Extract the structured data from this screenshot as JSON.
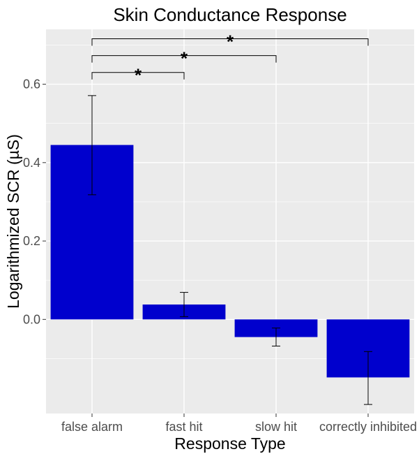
{
  "chart_data": {
    "type": "bar",
    "title": "Skin Conductance Response",
    "xlabel": "Response Type",
    "ylabel": "Logarithmized SCR (µS)",
    "categories": [
      "false alarm",
      "fast hit",
      "slow hit",
      "correctly inhibited"
    ],
    "values": [
      0.445,
      0.038,
      -0.045,
      -0.148
    ],
    "error_low": [
      0.318,
      0.007,
      -0.068,
      -0.217
    ],
    "error_high": [
      0.571,
      0.069,
      -0.022,
      -0.082
    ],
    "ylim": [
      -0.24,
      0.74
    ],
    "yticks": [
      0.0,
      0.2,
      0.4,
      0.6
    ],
    "ytick_labels": [
      "0.0",
      "0.2",
      "0.4",
      "0.6"
    ],
    "grid": true,
    "bar_color": "#0000CD",
    "panel_background": "#EBEBEB",
    "significance": [
      {
        "from": "false alarm",
        "to": "fast hit",
        "label": "*",
        "y": 0.63
      },
      {
        "from": "false alarm",
        "to": "slow hit",
        "label": "*",
        "y": 0.673
      },
      {
        "from": "false alarm",
        "to": "correctly inhibited",
        "label": "*",
        "y": 0.716
      }
    ]
  }
}
